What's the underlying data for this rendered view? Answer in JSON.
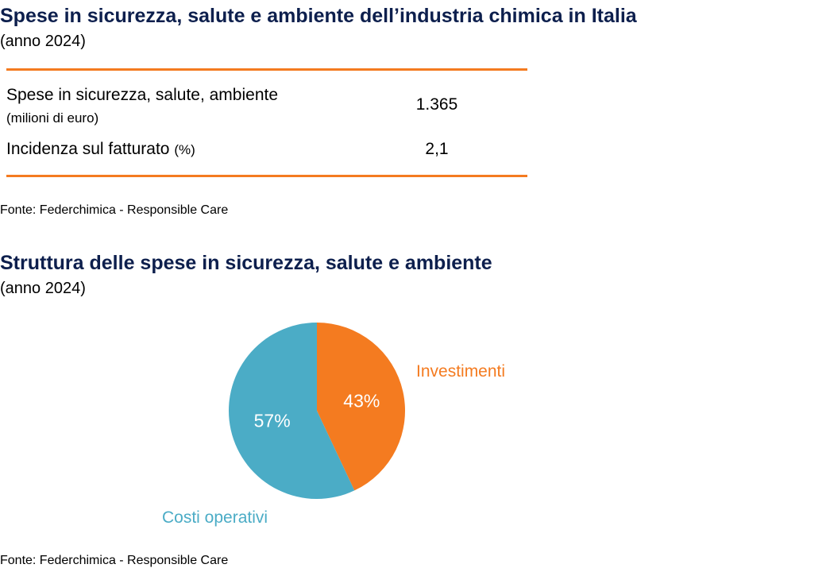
{
  "section1": {
    "title": "Spese in sicurezza, salute e ambiente dell’industria chimica in Italia",
    "subtitle": "(anno 2024)",
    "rows": [
      {
        "label": "Spese in sicurezza, salute, ambiente",
        "unit": "(milioni di euro)",
        "value": "1.365"
      },
      {
        "label": "Incidenza sul fatturato",
        "unit": "(%)",
        "value": "2,1"
      }
    ],
    "source": "Fonte: Federchimica - Responsible Care"
  },
  "section2": {
    "title": "Struttura delle spese in sicurezza, salute e ambiente",
    "subtitle": "(anno 2024)",
    "source": "Fonte: Federchimica - Responsible Care"
  },
  "chart_data": {
    "type": "pie",
    "title": "Struttura delle spese in sicurezza, salute e ambiente",
    "labels": [
      "Investimenti",
      "Costi operativi"
    ],
    "values": [
      43,
      57
    ],
    "value_labels": [
      "43%",
      "57%"
    ],
    "colors": [
      "#f47b20",
      "#4bacc6"
    ]
  }
}
